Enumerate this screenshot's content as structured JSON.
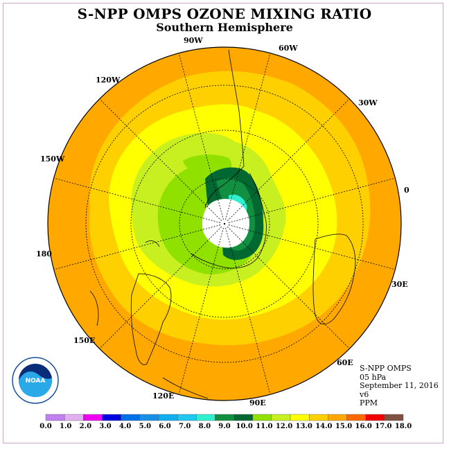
{
  "title": "S-NPP OMPS OZONE MIXING RATIO",
  "subtitle": "Southern Hemisphere",
  "info": {
    "instrument": "S-NPP OMPS",
    "level": "05 hPa",
    "date": "September 11, 2016",
    "version": "v6",
    "units": "PPM"
  },
  "longitude_labels": [
    "90W",
    "60W",
    "30W",
    "0",
    "30E",
    "60E",
    "90E",
    "120E",
    "150E",
    "180",
    "150W",
    "120W"
  ],
  "legend": {
    "ticks": [
      "0.0",
      "1.0",
      "2.0",
      "3.0",
      "4.0",
      "5.0",
      "6.0",
      "7.0",
      "8.0",
      "9.0",
      "10.0",
      "11.0",
      "12.0",
      "13.0",
      "14.0",
      "15.0",
      "16.0",
      "17.0",
      "18.0"
    ],
    "colors": [
      "#c080f0",
      "#e0b0f0",
      "#f000f0",
      "#0000e0",
      "#0070e8",
      "#1890e8",
      "#10b0f0",
      "#20c8f0",
      "#30f0d0",
      "#109040",
      "#006830",
      "#90e000",
      "#c8f020",
      "#ffff00",
      "#ffd000",
      "#ffa800",
      "#ff6800",
      "#f00000",
      "#805040"
    ]
  },
  "logo": {
    "text": "NOAA",
    "ring_text": "NATIONAL OCEANIC AND ATMOSPHERIC ADMINISTRATION · U.S. DEPARTMENT OF COMMERCE"
  }
}
